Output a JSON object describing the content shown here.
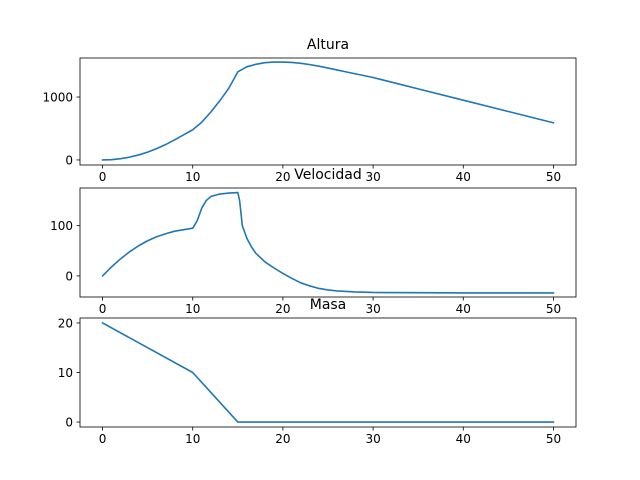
{
  "chart_data": [
    {
      "type": "line",
      "title": "Altura",
      "xlabel": "",
      "ylabel": "",
      "xlim": [
        -2.5,
        52.5
      ],
      "ylim": [
        -80,
        1620
      ],
      "x_ticks": [
        0,
        10,
        20,
        30,
        40,
        50
      ],
      "x_tick_labels": [
        "0",
        "10",
        "20",
        "30",
        "40",
        "50"
      ],
      "y_ticks": [
        0,
        1000
      ],
      "y_tick_labels": [
        "0",
        "1000"
      ],
      "grid": false,
      "series": [
        {
          "color": "#1f77b4",
          "x": [
            0,
            1,
            2,
            3,
            4,
            5,
            6,
            7,
            8,
            9,
            10,
            11,
            12,
            13,
            14,
            15,
            16,
            17,
            18,
            19,
            20,
            21,
            22,
            23,
            24,
            25,
            26,
            27,
            28,
            29,
            30,
            35,
            40,
            45,
            50
          ],
          "y": [
            0,
            5,
            20,
            45,
            80,
            125,
            180,
            245,
            320,
            400,
            480,
            600,
            760,
            940,
            1140,
            1400,
            1480,
            1520,
            1545,
            1555,
            1555,
            1550,
            1535,
            1515,
            1490,
            1460,
            1430,
            1400,
            1370,
            1340,
            1310,
            1130,
            950,
            770,
            590
          ]
        }
      ]
    },
    {
      "type": "line",
      "title": "Velocidad",
      "xlabel": "",
      "ylabel": "",
      "xlim": [
        -2.5,
        52.5
      ],
      "ylim": [
        -42,
        175
      ],
      "x_ticks": [
        0,
        10,
        20,
        30,
        40,
        50
      ],
      "x_tick_labels": [
        "0",
        "10",
        "20",
        "30",
        "40",
        "50"
      ],
      "y_ticks": [
        0,
        100
      ],
      "y_tick_labels": [
        "0",
        "100"
      ],
      "grid": false,
      "series": [
        {
          "color": "#1f77b4",
          "x": [
            0,
            1,
            2,
            3,
            4,
            5,
            6,
            7,
            8,
            9,
            10,
            10.5,
            11,
            11.5,
            12,
            13,
            14,
            15,
            15.2,
            15.5,
            16,
            16.5,
            17,
            18,
            19,
            20,
            21,
            22,
            23,
            24,
            25,
            26,
            28,
            30,
            35,
            40,
            45,
            50
          ],
          "y": [
            0,
            18,
            34,
            48,
            60,
            70,
            78,
            84,
            89,
            92,
            95,
            110,
            135,
            150,
            158,
            163,
            165,
            166,
            150,
            100,
            75,
            58,
            45,
            28,
            16,
            5,
            -5,
            -14,
            -20,
            -25,
            -28,
            -30,
            -32,
            -33,
            -33.5,
            -34,
            -34,
            -34
          ]
        }
      ]
    },
    {
      "type": "line",
      "title": "Masa",
      "xlabel": "",
      "ylabel": "",
      "xlim": [
        -2.5,
        52.5
      ],
      "ylim": [
        -1,
        21
      ],
      "x_ticks": [
        0,
        10,
        20,
        30,
        40,
        50
      ],
      "x_tick_labels": [
        "0",
        "10",
        "20",
        "30",
        "40",
        "50"
      ],
      "y_ticks": [
        0,
        10,
        20
      ],
      "y_tick_labels": [
        "0",
        "10",
        "20"
      ],
      "grid": false,
      "series": [
        {
          "color": "#1f77b4",
          "x": [
            0,
            10,
            15,
            50
          ],
          "y": [
            20,
            10,
            0,
            0
          ]
        }
      ]
    }
  ]
}
